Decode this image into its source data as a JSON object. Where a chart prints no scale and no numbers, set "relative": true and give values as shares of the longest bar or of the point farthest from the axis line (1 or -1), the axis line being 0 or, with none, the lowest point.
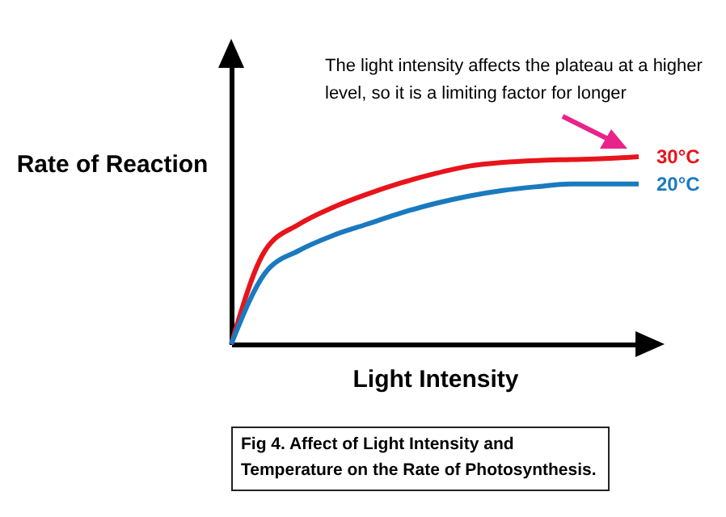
{
  "chart_data": {
    "type": "line",
    "relative": true,
    "xlabel": "Light Intensity",
    "ylabel": "Rate of Reaction",
    "tick_labels": false,
    "grid": false,
    "legend": false,
    "categories": [
      null,
      null,
      null,
      null,
      null,
      null,
      null,
      null,
      null,
      null,
      null,
      null,
      null
    ],
    "series": [
      {
        "name": "30°C",
        "color": "#e8141b",
        "values": [
          0,
          0.5,
          0.64,
          0.73,
          0.8,
          0.86,
          0.91,
          0.95,
          0.97,
          0.98,
          0.985,
          0.99,
          1
        ]
      },
      {
        "name": "20°C",
        "color": "#1a7abf",
        "values": [
          0,
          0.38,
          0.5,
          0.58,
          0.64,
          0.7,
          0.75,
          0.79,
          0.82,
          0.84,
          0.855,
          0.855,
          0.855
        ]
      }
    ],
    "annotations": [
      "The light intensity affects the plateau at a higher level, so it is a limiting factor for longer",
      "Fig 4. Affect of Light Intensity and Temperature on the Rate of Photosynthesis."
    ]
  }
}
